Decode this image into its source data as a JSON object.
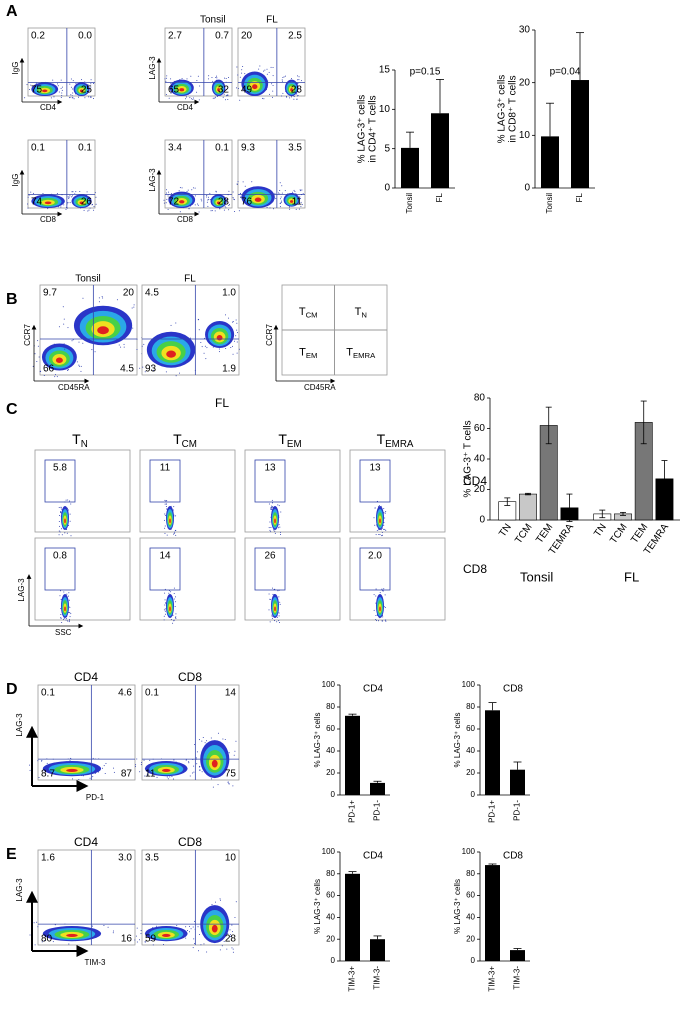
{
  "panel_labels": [
    "A",
    "B",
    "C",
    "D",
    "E"
  ],
  "a": {
    "titles": [
      "Tonsil",
      "FL"
    ],
    "plots": [
      {
        "ylabel": "IgG",
        "xlabel": "CD4",
        "quadrants": [
          "0.2",
          "0.0",
          "75",
          "25"
        ]
      },
      {
        "ylabel": "LAG-3",
        "xlabel": "CD4",
        "quadrants": [
          "2.7",
          "0.7",
          "65",
          "32"
        ]
      },
      {
        "quadrants": [
          "20",
          "2.5",
          "49",
          "28"
        ]
      },
      {
        "ylabel": "IgG",
        "xlabel": "CD8",
        "quadrants": [
          "0.1",
          "0.1",
          "74",
          "26"
        ]
      },
      {
        "ylabel": "LAG-3",
        "xlabel": "CD8",
        "quadrants": [
          "3.4",
          "0.1",
          "72",
          "28"
        ]
      },
      {
        "quadrants": [
          "9.3",
          "3.5",
          "76",
          "11"
        ]
      }
    ]
  },
  "b": {
    "plots": [
      {
        "title": "Tonsil",
        "ylabel": "CCR7",
        "xlabel": "CD45RA",
        "quadrants": [
          "9.7",
          "20",
          "66",
          "4.5"
        ]
      },
      {
        "title": "FL",
        "quadrants": [
          "4.5",
          "1.0",
          "93",
          "1.9"
        ]
      }
    ],
    "schematic": {
      "ylabel": "CCR7",
      "xlabel": "CD45RA",
      "cells": [
        {
          "main": "T",
          "sub": "CM"
        },
        {
          "main": "T",
          "sub": "N"
        },
        {
          "main": "T",
          "sub": "EM"
        },
        {
          "main": "T",
          "sub": "EMRA"
        }
      ]
    }
  },
  "c": {
    "title": "FL",
    "columns": [
      {
        "main": "T",
        "sub": "N"
      },
      {
        "main": "T",
        "sub": "CM"
      },
      {
        "main": "T",
        "sub": "EM"
      },
      {
        "main": "T",
        "sub": "EMRA"
      }
    ],
    "rows": [
      "CD4",
      "CD8"
    ],
    "gates": [
      [
        "5.8",
        "11",
        "13",
        "13"
      ],
      [
        "0.8",
        "14",
        "26",
        "2.0"
      ]
    ],
    "ylabel": "LAG-3",
    "xlabel": "SSC"
  },
  "d": {
    "ylabel": "LAG-3",
    "xlabel": "PD-1",
    "plots": [
      {
        "title": "CD4",
        "quadrants": [
          "0.1",
          "4.6",
          "8.7",
          "87"
        ]
      },
      {
        "title": "CD8",
        "quadrants": [
          "0.1",
          "14",
          "11",
          "75"
        ]
      }
    ]
  },
  "e": {
    "ylabel": "LAG-3",
    "xlabel": "TIM-3",
    "plots": [
      {
        "title": "CD4",
        "quadrants": [
          "1.6",
          "3.0",
          "80",
          "16"
        ]
      },
      {
        "title": "CD8",
        "quadrants": [
          "3.5",
          "10",
          "59",
          "28"
        ]
      }
    ]
  },
  "chart_data": [
    {
      "type": "bar",
      "annotation": "p=0.15",
      "ylabel": [
        "% LAG-3⁺ cells",
        "in CD4⁺ T cells"
      ],
      "categories": [
        "Tonsil",
        "FL"
      ],
      "values": [
        5.1,
        9.5
      ],
      "errors": [
        2,
        4.3
      ],
      "color": "#000000",
      "ylim": [
        0,
        15
      ],
      "yticks": [
        0,
        5,
        10,
        15
      ]
    },
    {
      "type": "bar",
      "annotation": "p=0.04",
      "ylabel": [
        "% LAG-3⁺ cells",
        "in CD8⁺ T cells"
      ],
      "categories": [
        "Tonsil",
        "FL"
      ],
      "values": [
        9.8,
        20.5
      ],
      "errors": [
        6.3,
        9
      ],
      "color": "#000000",
      "ylim": [
        0,
        30
      ],
      "yticks": [
        0,
        10,
        20,
        30
      ]
    },
    {
      "type": "grouped_bar",
      "ylabel": [
        "% LAG-3⁺ T cells"
      ],
      "categories": [
        "TN",
        "TCM",
        "TEM",
        "TEMRA"
      ],
      "series": [
        {
          "name": "Tonsil",
          "values": [
            12,
            17,
            62,
            8
          ],
          "errors": [
            2.5,
            0.5,
            12,
            9
          ]
        },
        {
          "name": "FL",
          "values": [
            4,
            4,
            64,
            27
          ],
          "errors": [
            2.5,
            1,
            14,
            12
          ]
        }
      ],
      "colors": [
        "#ffffff",
        "#c8c8c8",
        "#777777",
        "#000000"
      ],
      "ylim": [
        0,
        80
      ],
      "yticks": [
        0,
        20,
        40,
        60,
        80
      ]
    },
    {
      "type": "bar",
      "title": "CD4",
      "ylabel": [
        "% LAG-3⁺ cells"
      ],
      "categories": [
        "PD-1+",
        "PD-1-"
      ],
      "values": [
        72,
        11
      ],
      "errors": [
        1.5,
        1.5
      ],
      "color": "#000000",
      "ylim": [
        0,
        100
      ],
      "yticks": [
        0,
        20,
        40,
        60,
        80,
        100
      ]
    },
    {
      "type": "bar",
      "title": "CD8",
      "ylabel": [
        "% LAG-3⁺ cells"
      ],
      "categories": [
        "PD-1+",
        "PD-1-"
      ],
      "values": [
        77,
        23
      ],
      "errors": [
        7,
        7
      ],
      "color": "#000000",
      "ylim": [
        0,
        100
      ],
      "yticks": [
        0,
        20,
        40,
        60,
        80,
        100
      ]
    },
    {
      "type": "bar",
      "title": "CD4",
      "ylabel": [
        "% LAG-3⁺ cells"
      ],
      "categories": [
        "TIM-3+",
        "TIM-3-"
      ],
      "values": [
        80,
        20
      ],
      "errors": [
        2,
        3
      ],
      "color": "#000000",
      "ylim": [
        0,
        100
      ],
      "yticks": [
        0,
        20,
        40,
        60,
        80,
        100
      ]
    },
    {
      "type": "bar",
      "title": "CD8",
      "ylabel": [
        "% LAG-3⁺ cells"
      ],
      "categories": [
        "TIM-3+",
        "TIM-3-"
      ],
      "values": [
        88,
        10
      ],
      "errors": [
        1,
        1.5
      ],
      "color": "#000000",
      "ylim": [
        0,
        100
      ],
      "yticks": [
        0,
        20,
        40,
        60,
        80,
        100
      ]
    }
  ]
}
